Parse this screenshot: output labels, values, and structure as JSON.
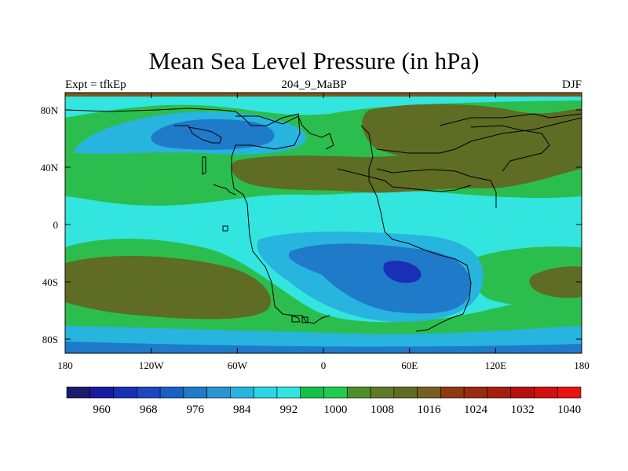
{
  "title": "Mean Sea Level Pressure (in hPa)",
  "subtitle_left": "Expt = tfkEp",
  "subtitle_center": "204_9_MaBP",
  "subtitle_right": "DJF",
  "lat_labels": [
    "80N",
    "40N",
    "0",
    "40S",
    "80S"
  ],
  "lon_labels": [
    "180",
    "120W",
    "60W",
    "0",
    "60E",
    "120E",
    "180"
  ],
  "colorbar": {
    "labels": [
      "960",
      "968",
      "976",
      "984",
      "992",
      "1000",
      "1008",
      "1016",
      "1024",
      "1032",
      "1040"
    ],
    "colors": [
      "#1a1a6e",
      "#1a1aa0",
      "#1a2fb8",
      "#1a47c0",
      "#1a60c4",
      "#1f7ac9",
      "#2a95d2",
      "#27b4df",
      "#2bd6e3",
      "#33e5df",
      "#12c24b",
      "#20cc50",
      "#4d8f2a",
      "#5f7a26",
      "#5e6c24",
      "#785e1e",
      "#8e3a10",
      "#9a2a0e",
      "#a51e10",
      "#b51010",
      "#d01010",
      "#e81313"
    ]
  },
  "field_colors": {
    "ocean_light": "#33e5df",
    "green": "#2bbe4e",
    "dark_green": "#4d8f2a",
    "olive": "#5e6c24",
    "brown": "#6e6a28",
    "blue_mid": "#27b4df",
    "blue_dark": "#1f7ac9",
    "blue_deep": "#1a47c0",
    "blue_core": "#1a2fb8",
    "brown_band": "#7a5a1e"
  }
}
